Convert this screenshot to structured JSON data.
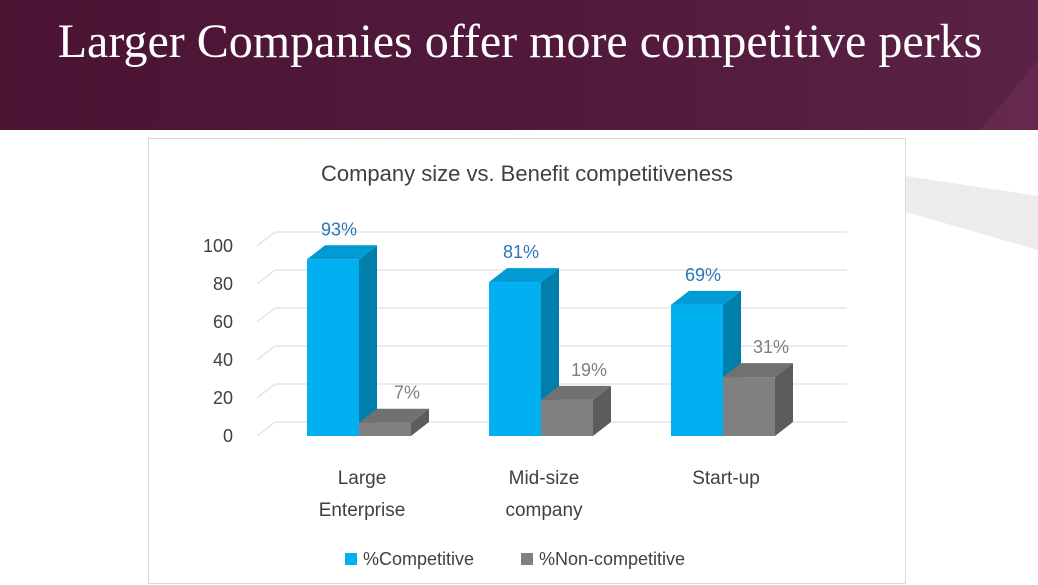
{
  "slide": {
    "title": "Larger Companies offer more competitive perks"
  },
  "colors": {
    "banner": "#4a1433",
    "competitive": "#00b0f0",
    "non_competitive": "#808080",
    "label_competitive": "#2e75b6",
    "label_non_competitive": "#7f7f7f"
  },
  "chart_data": {
    "type": "bar",
    "style": "3d-clustered-column",
    "title": "Company size vs. Benefit competitiveness",
    "categories": [
      "Large Enterprise",
      "Mid-size company",
      "Start-up"
    ],
    "series": [
      {
        "name": "%Competitive",
        "values": [
          93,
          81,
          69
        ],
        "labels": [
          "93%",
          "81%",
          "69%"
        ]
      },
      {
        "name": "%Non-competitive",
        "values": [
          7,
          19,
          31
        ],
        "labels": [
          "7%",
          "19%",
          "31%"
        ]
      }
    ],
    "yticks": [
      "0",
      "20",
      "40",
      "60",
      "80",
      "100"
    ],
    "ylim": [
      0,
      100
    ],
    "grid": true,
    "legend": "bottom"
  }
}
